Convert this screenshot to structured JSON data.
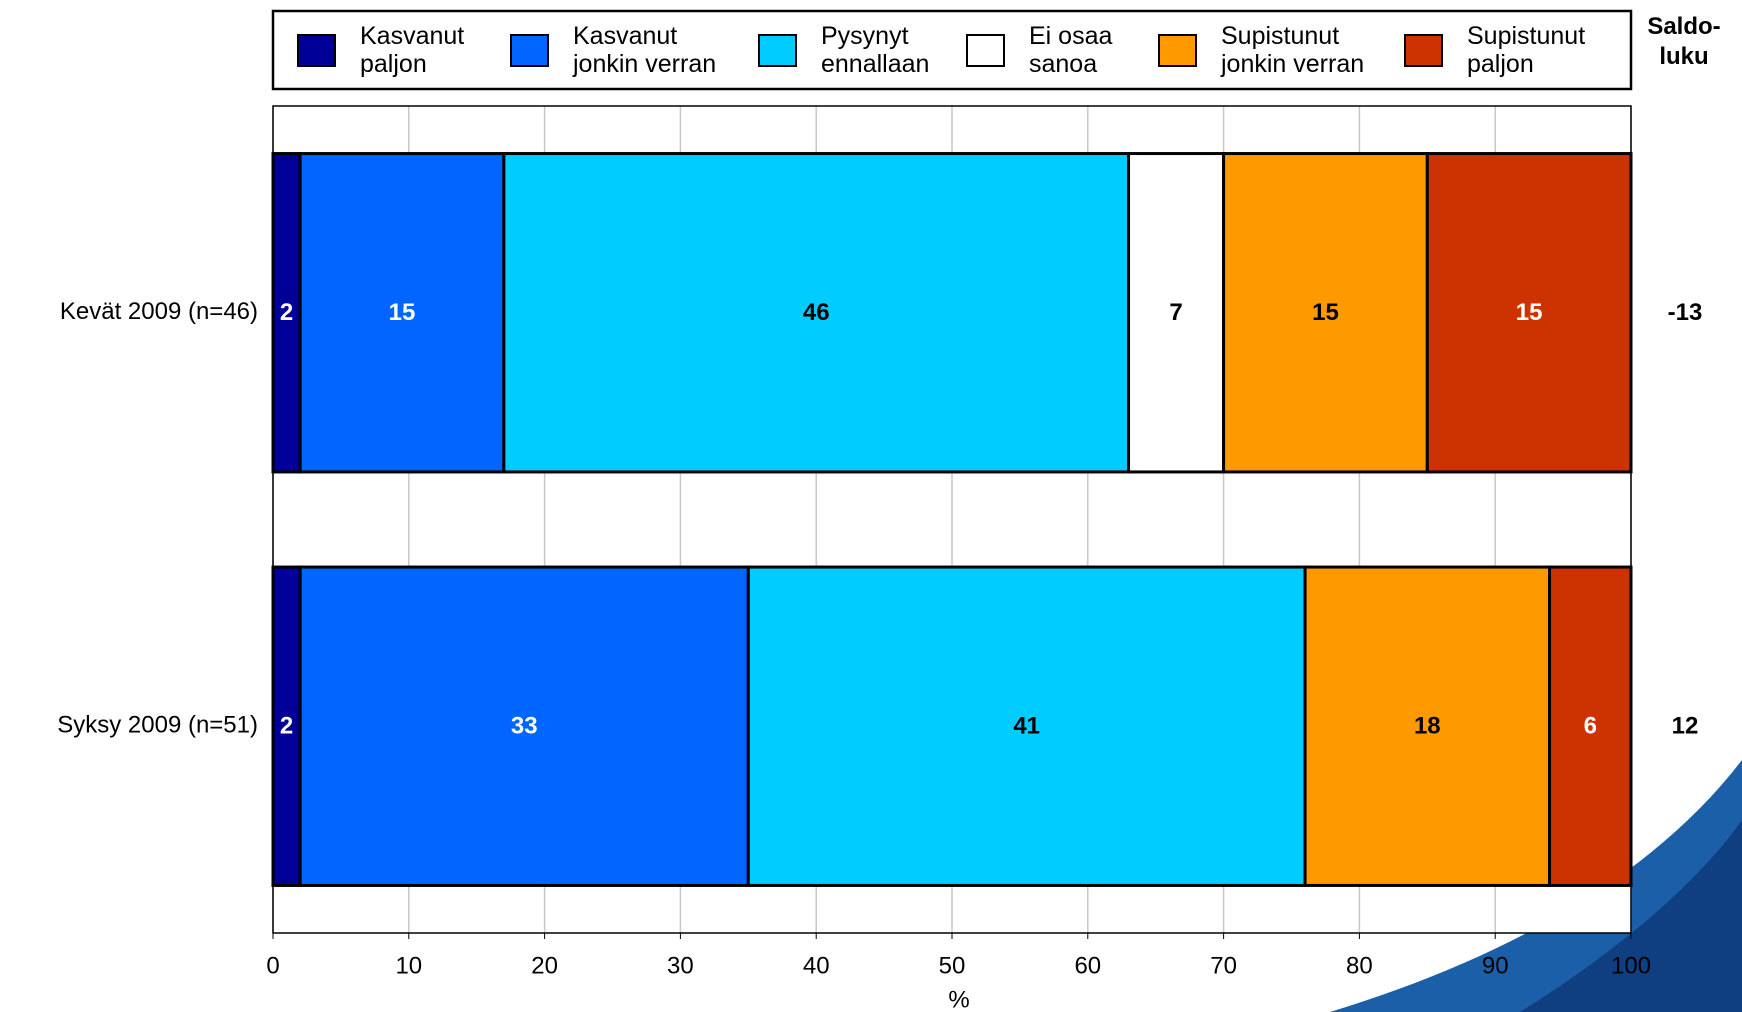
{
  "chart_data": {
    "type": "stacked-barh",
    "categories": [
      "Kevät 2009 (n=46)",
      "Syksy 2009 (n=51)"
    ],
    "series": [
      {
        "name": "Kasvanut paljon",
        "color": "#000099",
        "values": [
          2,
          2
        ]
      },
      {
        "name": "Kasvanut jonkin verran",
        "color": "#0066ff",
        "values": [
          15,
          33
        ]
      },
      {
        "name": "Pysynyt ennallaan",
        "color": "#00ccff",
        "values": [
          46,
          41
        ]
      },
      {
        "name": "Ei osaa sanoa",
        "color": "#ffffff",
        "values": [
          7,
          0
        ]
      },
      {
        "name": "Supistunut jonkin verran",
        "color": "#ff9900",
        "values": [
          15,
          18
        ]
      },
      {
        "name": "Supistunut paljon",
        "color": "#cc3300",
        "values": [
          15,
          6
        ]
      }
    ],
    "xlabel": "%",
    "xlim": [
      0,
      100
    ],
    "xticks": [
      0,
      10,
      20,
      30,
      40,
      50,
      60,
      70,
      80,
      90,
      100
    ],
    "grid": true,
    "side_column": {
      "title": "Saldo-luku",
      "values": [
        -13,
        12
      ]
    }
  }
}
